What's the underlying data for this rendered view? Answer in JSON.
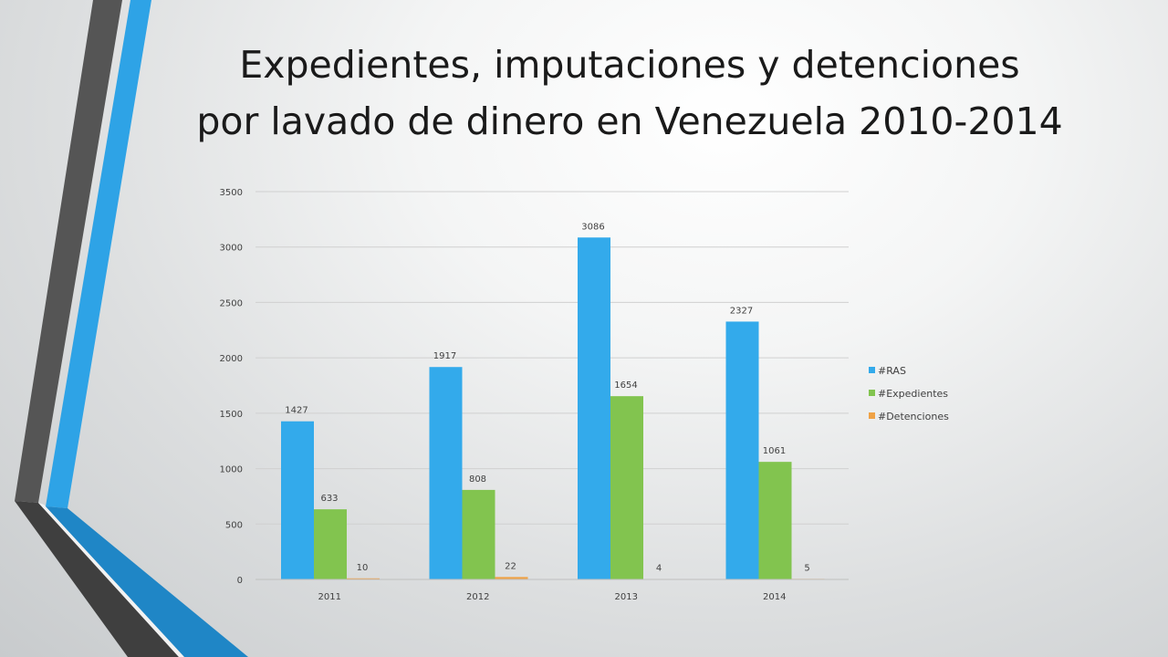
{
  "slide": {
    "title_line1": "Expedientes, imputaciones y detenciones",
    "title_line2": "por lavado de dinero en Venezuela 2010-2014"
  },
  "colors": {
    "ras": "#33aaeb",
    "expedientes": "#82c44f",
    "detenciones": "#efa246",
    "decor_dark": "#4f4f4f",
    "decor_blue": "#2ea3e6"
  },
  "chart_data": {
    "type": "bar",
    "categories": [
      "2011",
      "2012",
      "2013",
      "2014"
    ],
    "series": [
      {
        "name": "#RAS",
        "values": [
          1427,
          1917,
          3086,
          2327
        ],
        "color": "#33aaeb"
      },
      {
        "name": "#Expedientes",
        "values": [
          633,
          808,
          1654,
          1061
        ],
        "color": "#82c44f"
      },
      {
        "name": "#Detenciones",
        "values": [
          10,
          22,
          4,
          5
        ],
        "color": "#efa246"
      }
    ],
    "ylim": [
      0,
      3500
    ],
    "yticks": [
      "0",
      "500",
      "1000",
      "1500",
      "2000",
      "2500",
      "3000",
      "3500"
    ],
    "grid": true,
    "legend": "right",
    "data_labels": true
  }
}
